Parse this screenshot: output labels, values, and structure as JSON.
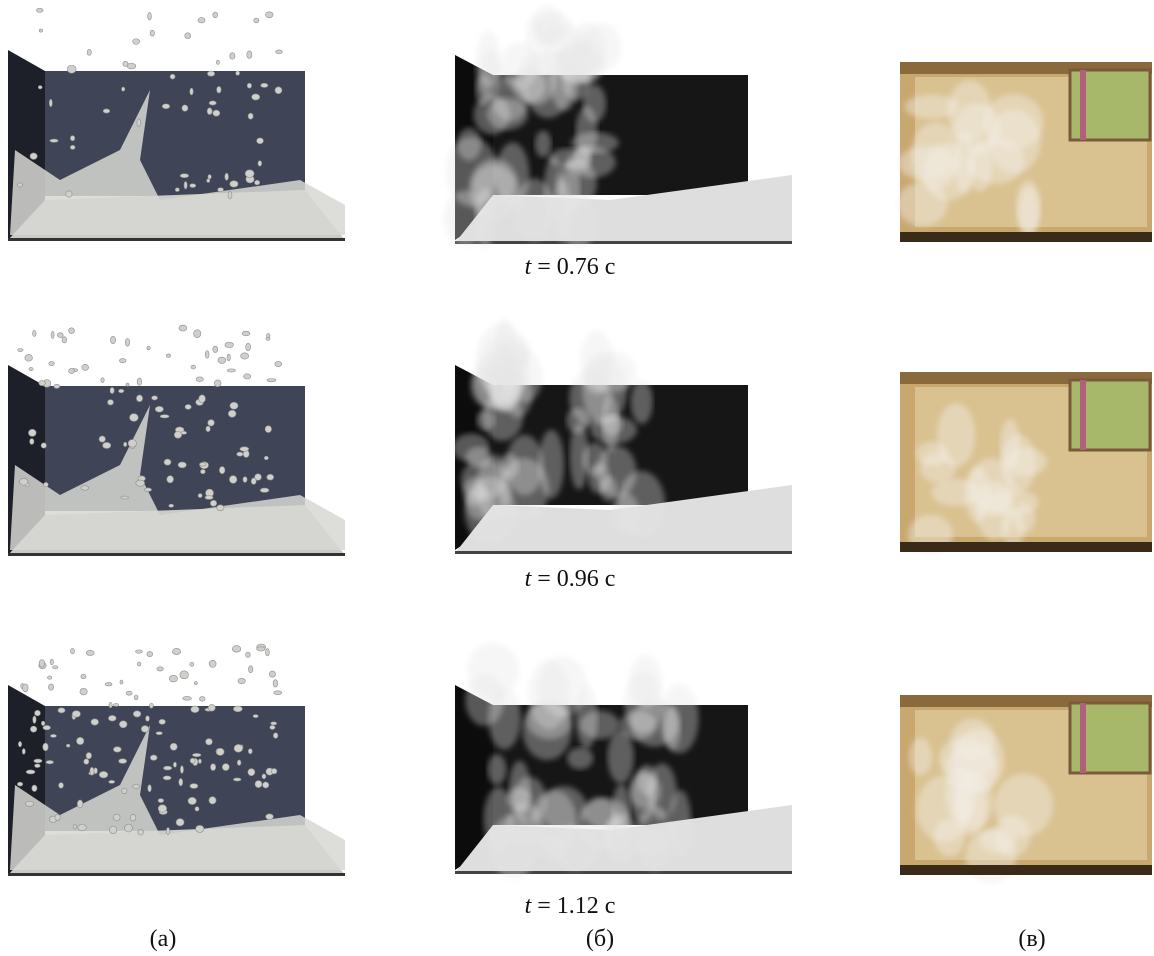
{
  "figure": {
    "time_labels": [
      "t = 0.76 с",
      "t = 0.96 с",
      "t = 1.12 с"
    ],
    "panel_labels": [
      "(а)",
      "(б)",
      "(в)"
    ]
  }
}
